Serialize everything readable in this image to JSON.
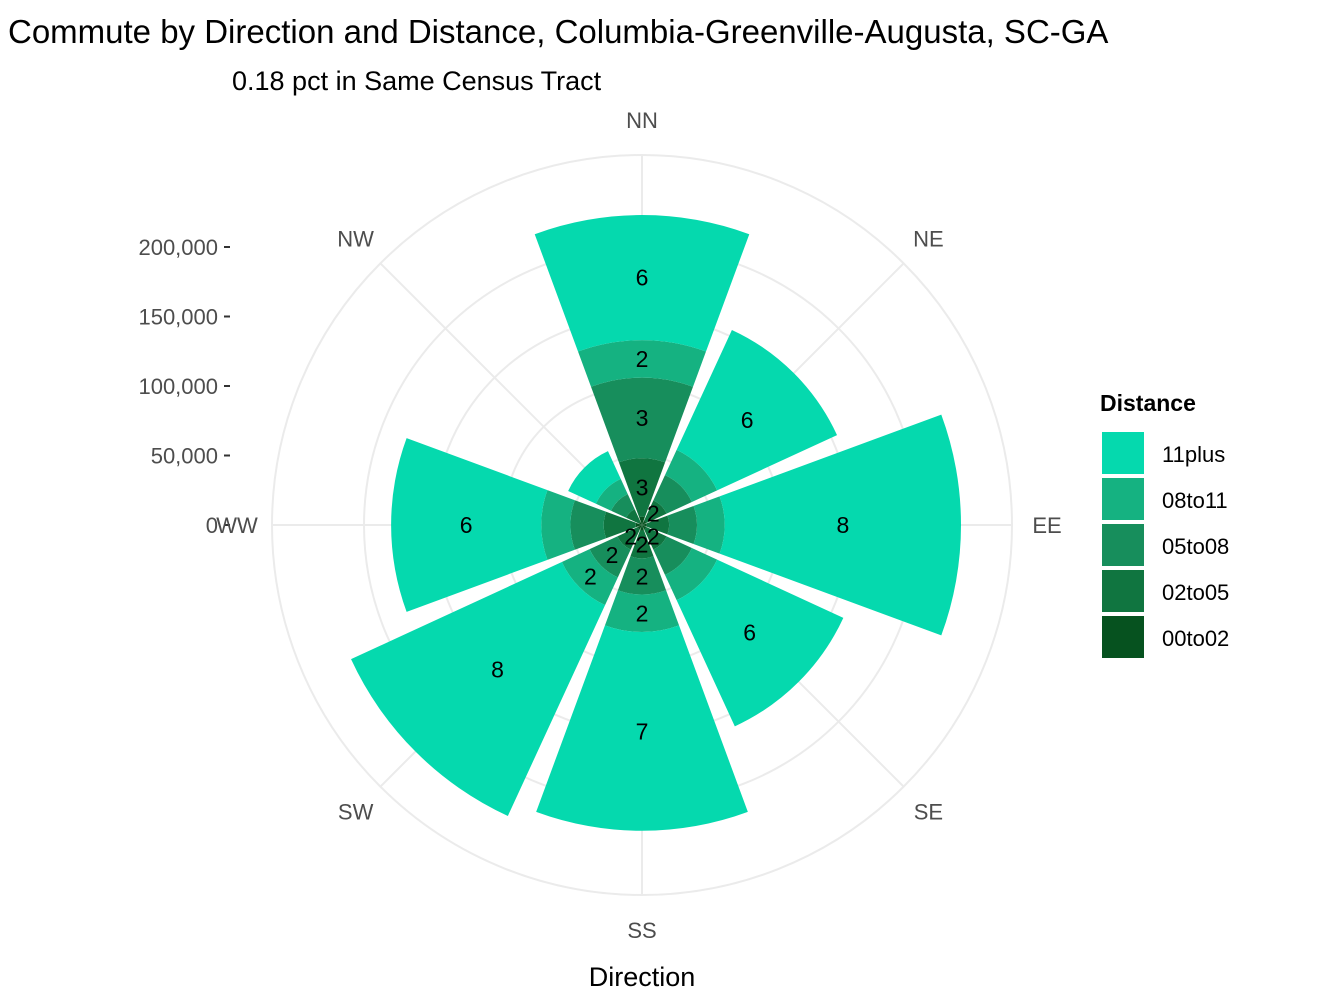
{
  "chart_data": {
    "type": "polar-stacked-bar",
    "title": "Commute by Direction and Distance, Columbia-Greenville-Augusta, SC-GA",
    "subtitle": "0.18 pct in Same Census Tract",
    "xlabel": "Direction",
    "categories": [
      "NN",
      "NE",
      "EE",
      "SE",
      "SS",
      "SW",
      "WW",
      "NW"
    ],
    "r_ticks": [
      0,
      50000,
      100000,
      150000,
      200000
    ],
    "r_tick_labels": [
      "0",
      "50,000",
      "100,000",
      "150,000",
      "200,000"
    ],
    "rlim": [
      0,
      200000
    ],
    "legend_title": "Distance",
    "legend_position": "right",
    "series": [
      {
        "name": "00to02",
        "color": "#06521f",
        "values": [
          6000,
          3500,
          3500,
          3500,
          4000,
          3500,
          4500,
          2500
        ],
        "labels": [
          "",
          "",
          "",
          "",
          "",
          "",
          "",
          ""
        ]
      },
      {
        "name": "02to05",
        "color": "#107540",
        "values": [
          42000,
          16000,
          16000,
          16000,
          20000,
          16000,
          23000,
          10000
        ],
        "labels": [
          "3",
          "2",
          "",
          "2",
          "2",
          "2",
          "",
          ""
        ]
      },
      {
        "name": "05to08",
        "color": "#178e5c",
        "values": [
          58000,
          20000,
          20000,
          20000,
          26000,
          22000,
          24000,
          12000
        ],
        "labels": [
          "3",
          "",
          "",
          "",
          "2",
          "2",
          "",
          ""
        ]
      },
      {
        "name": "08to11",
        "color": "#15b281",
        "values": [
          27000,
          20000,
          20000,
          20000,
          27000,
          22000,
          21000,
          12000
        ],
        "labels": [
          "2",
          "",
          "",
          "",
          "2",
          "2",
          "",
          ""
        ]
      },
      {
        "name": "11plus",
        "color": "#05d9ae",
        "values": [
          90000,
          95000,
          170000,
          100000,
          143000,
          167000,
          108000,
          22000
        ],
        "labels": [
          "6",
          "6",
          "8",
          "6",
          "7",
          "8",
          "6",
          ""
        ]
      }
    ],
    "legend_order": [
      "11plus",
      "08to11",
      "05to08",
      "02to05",
      "00to02"
    ],
    "grid": true
  }
}
